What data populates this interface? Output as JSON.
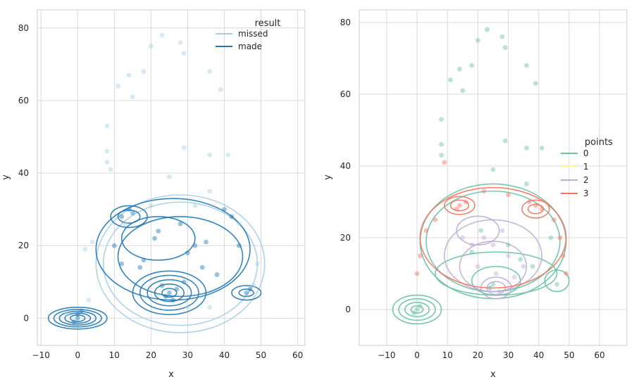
{
  "chart_data": [
    {
      "type": "scatter",
      "xlabel": "x",
      "ylabel": "y",
      "xlim": [
        -11,
        62
      ],
      "ylim": [
        -7.5,
        85
      ],
      "xticks": [
        -10,
        0,
        10,
        20,
        30,
        40,
        50,
        60
      ],
      "yticks": [
        0,
        20,
        40,
        60,
        80
      ],
      "grid": true,
      "legend": {
        "title": "result",
        "position": "top-right",
        "entries": [
          "missed",
          "made"
        ]
      },
      "series": [
        {
          "name": "missed",
          "color": "#a6cee3",
          "points": [
            [
              23,
              78
            ],
            [
              28,
              76
            ],
            [
              20,
              75
            ],
            [
              29,
              73
            ],
            [
              36,
              68
            ],
            [
              14,
              67
            ],
            [
              18,
              68
            ],
            [
              11,
              64
            ],
            [
              39,
              63
            ],
            [
              15,
              61
            ],
            [
              8,
              53
            ],
            [
              8,
              46
            ],
            [
              41,
              45
            ],
            [
              36,
              45
            ],
            [
              29,
              47
            ],
            [
              8,
              43
            ],
            [
              9,
              41
            ],
            [
              25,
              39
            ],
            [
              36,
              35
            ],
            [
              2,
              19
            ],
            [
              4,
              21
            ],
            [
              48,
              9
            ],
            [
              49,
              15
            ],
            [
              30,
              3
            ],
            [
              36,
              3
            ],
            [
              -3,
              1
            ],
            [
              3,
              5
            ],
            [
              13,
              26
            ],
            [
              44,
              26
            ],
            [
              20,
              31
            ],
            [
              32,
              31
            ]
          ]
        },
        {
          "name": "made",
          "color": "#1f78b4",
          "points": [
            [
              0,
              0
            ],
            [
              0,
              1
            ],
            [
              -1,
              -1
            ],
            [
              1,
              2
            ],
            [
              25,
              7
            ],
            [
              24,
              6
            ],
            [
              26,
              5
            ],
            [
              27,
              8
            ],
            [
              23,
              9
            ],
            [
              46,
              7
            ],
            [
              47,
              8
            ],
            [
              12,
              28
            ],
            [
              14,
              30
            ],
            [
              15,
              29
            ],
            [
              21,
              22
            ],
            [
              22,
              24
            ],
            [
              30,
              18
            ],
            [
              32,
              20
            ],
            [
              35,
              21
            ],
            [
              38,
              12
            ],
            [
              18,
              16
            ],
            [
              17,
              14
            ],
            [
              28,
              26
            ],
            [
              40,
              30
            ],
            [
              42,
              28
            ],
            [
              44,
              20
            ],
            [
              10,
              20
            ],
            [
              12,
              15
            ],
            [
              34,
              14
            ],
            [
              29,
              10
            ]
          ]
        }
      ],
      "kde_contours": [
        {
          "series": "missed",
          "rings": [
            {
              "cx": 28,
              "cy": 15,
              "rx": 23,
              "ry": 19
            },
            {
              "cx": 28,
              "cy": 15,
              "rx": 21,
              "ry": 17
            }
          ]
        },
        {
          "series": "made",
          "rings": [
            {
              "cx": 0,
              "cy": 0,
              "rx": 8,
              "ry": 3
            },
            {
              "cx": 0,
              "cy": 0,
              "rx": 6.5,
              "ry": 2.4
            },
            {
              "cx": 0,
              "cy": 0,
              "rx": 5,
              "ry": 1.9
            },
            {
              "cx": 0,
              "cy": 0,
              "rx": 3.5,
              "ry": 1.4
            },
            {
              "cx": 0,
              "cy": 0,
              "rx": 2,
              "ry": 0.9
            },
            {
              "cx": 25,
              "cy": 7,
              "rx": 10,
              "ry": 6
            },
            {
              "cx": 25,
              "cy": 7,
              "rx": 8,
              "ry": 4.8
            },
            {
              "cx": 25,
              "cy": 7,
              "rx": 6,
              "ry": 3.6
            },
            {
              "cx": 25,
              "cy": 7,
              "rx": 4,
              "ry": 2.4
            },
            {
              "cx": 25,
              "cy": 7,
              "rx": 2,
              "ry": 1.2
            },
            {
              "cx": 14,
              "cy": 28,
              "rx": 5,
              "ry": 3
            },
            {
              "cx": 14,
              "cy": 28,
              "rx": 3,
              "ry": 1.8
            },
            {
              "cx": 46,
              "cy": 7,
              "rx": 4,
              "ry": 2
            },
            {
              "cx": 46,
              "cy": 7,
              "rx": 2,
              "ry": 1
            },
            {
              "cx": 26,
              "cy": 19,
              "rx": 21,
              "ry": 14
            },
            {
              "cx": 28,
              "cy": 17,
              "rx": 17,
              "ry": 11
            },
            {
              "cx": 22,
              "cy": 22,
              "rx": 10,
              "ry": 6
            }
          ]
        }
      ]
    },
    {
      "type": "scatter",
      "xlabel": "x",
      "ylabel": "y",
      "xlim": [
        -19,
        69
      ],
      "ylim": [
        -10,
        83.5
      ],
      "xticks": [
        -10,
        0,
        10,
        20,
        30,
        40,
        50,
        60
      ],
      "yticks": [
        0,
        20,
        40,
        60,
        80
      ],
      "grid": true,
      "legend": {
        "title": "points",
        "position": "top-right",
        "entries": [
          "0",
          "1",
          "2",
          "3"
        ]
      },
      "series": [
        {
          "name": "0",
          "color": "#66c2a5",
          "points": [
            [
              23,
              78
            ],
            [
              28,
              76
            ],
            [
              20,
              75
            ],
            [
              29,
              73
            ],
            [
              36,
              68
            ],
            [
              14,
              67
            ],
            [
              18,
              68
            ],
            [
              11,
              64
            ],
            [
              39,
              63
            ],
            [
              15,
              61
            ],
            [
              8,
              53
            ],
            [
              8,
              46
            ],
            [
              41,
              45
            ],
            [
              36,
              45
            ],
            [
              29,
              47
            ],
            [
              8,
              43
            ],
            [
              25,
              39
            ],
            [
              36,
              35
            ],
            [
              0,
              0
            ],
            [
              -1,
              -1
            ],
            [
              1,
              1
            ],
            [
              25,
              7
            ],
            [
              24,
              6
            ],
            [
              46,
              7
            ],
            [
              30,
              18
            ],
            [
              21,
              22
            ],
            [
              38,
              12
            ],
            [
              18,
              16
            ],
            [
              34,
              14
            ],
            [
              44,
              20
            ]
          ]
        },
        {
          "name": "1",
          "color": "#ffff99",
          "points": []
        },
        {
          "name": "2",
          "color": "#beaed4",
          "points": [
            [
              22,
              20
            ],
            [
              25,
              18
            ],
            [
              28,
              22
            ],
            [
              30,
              15
            ],
            [
              20,
              12
            ],
            [
              26,
              10
            ],
            [
              32,
              9
            ],
            [
              24,
              6
            ],
            [
              27,
              5
            ],
            [
              35,
              12
            ],
            [
              18,
              18
            ],
            [
              15,
              20
            ]
          ]
        },
        {
          "name": "3",
          "color": "#f4735f",
          "points": [
            [
              9,
              41
            ],
            [
              14,
              29
            ],
            [
              13,
              28
            ],
            [
              16,
              30
            ],
            [
              39,
              29
            ],
            [
              41,
              28
            ],
            [
              37,
              30
            ],
            [
              1,
              15
            ],
            [
              0,
              10
            ],
            [
              48,
              15
            ],
            [
              49,
              10
            ],
            [
              47,
              20
            ],
            [
              3,
              22
            ],
            [
              6,
              25
            ],
            [
              45,
              25
            ],
            [
              22,
              33
            ],
            [
              30,
              32
            ]
          ]
        }
      ],
      "kde_contours": [
        {
          "series": "0",
          "rings": [
            {
              "cx": 0,
              "cy": 0,
              "rx": 8,
              "ry": 4
            },
            {
              "cx": 0,
              "cy": 0,
              "rx": 6,
              "ry": 3
            },
            {
              "cx": 0,
              "cy": 0,
              "rx": 4,
              "ry": 2
            },
            {
              "cx": 0,
              "cy": 0,
              "rx": 2,
              "ry": 1
            },
            {
              "cx": 25,
              "cy": 19,
              "rx": 24,
              "ry": 16
            },
            {
              "cx": 25,
              "cy": 19,
              "rx": 22,
              "ry": 14
            },
            {
              "cx": 26,
              "cy": 10,
              "rx": 20,
              "ry": 6
            },
            {
              "cx": 26,
              "cy": 8,
              "rx": 8,
              "ry": 4
            },
            {
              "cx": 46,
              "cy": 8,
              "rx": 4,
              "ry": 3
            }
          ]
        },
        {
          "series": "2",
          "rings": [
            {
              "cx": 25,
              "cy": 15,
              "rx": 16,
              "ry": 10
            },
            {
              "cx": 25,
              "cy": 12,
              "rx": 11,
              "ry": 7
            },
            {
              "cx": 26,
              "cy": 6,
              "rx": 5,
              "ry": 3
            },
            {
              "cx": 26,
              "cy": 6,
              "rx": 3,
              "ry": 1.8
            },
            {
              "cx": 20,
              "cy": 22,
              "rx": 7,
              "ry": 4
            }
          ]
        },
        {
          "series": "3",
          "rings": [
            {
              "cx": 14,
              "cy": 29,
              "rx": 5,
              "ry": 2.5
            },
            {
              "cx": 14,
              "cy": 29,
              "rx": 3,
              "ry": 1.5
            },
            {
              "cx": 39,
              "cy": 28,
              "rx": 4.5,
              "ry": 2.5
            },
            {
              "cx": 39,
              "cy": 28,
              "rx": 2.5,
              "ry": 1.3
            },
            {
              "cx": 25,
              "cy": 20,
              "rx": 24,
              "ry": 14
            }
          ]
        }
      ]
    }
  ]
}
